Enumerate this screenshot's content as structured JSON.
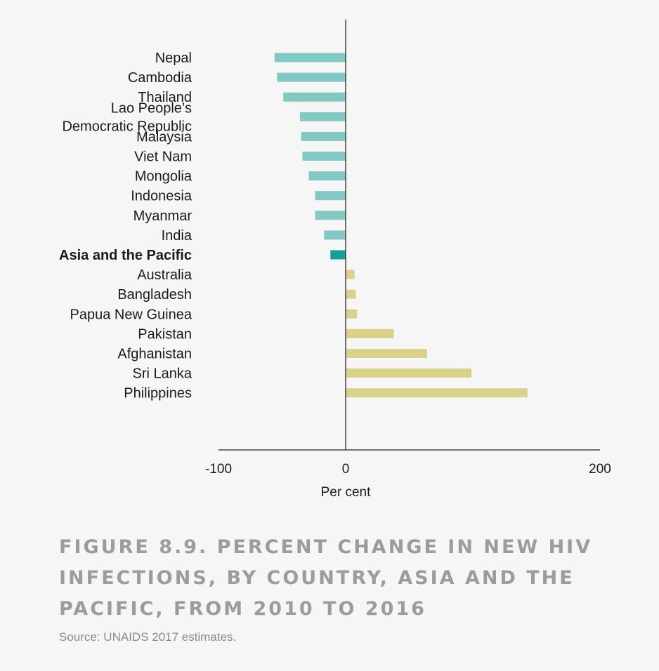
{
  "chart_data": {
    "type": "bar",
    "orientation": "horizontal",
    "categories": [
      "Nepal",
      "Cambodia",
      "Thailand",
      "Lao People’s Democratic Republic",
      "Malaysia",
      "Viet Nam",
      "Mongolia",
      "Indonesia",
      "Myanmar",
      "India",
      "Asia and the Pacific",
      "Australia",
      "Bangladesh",
      "Papua New Guinea",
      "Pakistan",
      "Afghanistan",
      "Sri Lanka",
      "Philippines"
    ],
    "category_lines": [
      [
        "Nepal"
      ],
      [
        "Cambodia"
      ],
      [
        "Thailand"
      ],
      [
        "Lao People’s",
        "Democratic Republic"
      ],
      [
        "Malaysia"
      ],
      [
        "Viet Nam"
      ],
      [
        "Mongolia"
      ],
      [
        "Indonesia"
      ],
      [
        "Myanmar"
      ],
      [
        "India"
      ],
      [
        "Asia and the Pacific"
      ],
      [
        "Australia"
      ],
      [
        "Bangladesh"
      ],
      [
        "Papua New Guinea"
      ],
      [
        "Pakistan"
      ],
      [
        "Afghanistan"
      ],
      [
        "Sri Lanka"
      ],
      [
        "Philippines"
      ]
    ],
    "values": [
      -56,
      -54,
      -49,
      -36,
      -35,
      -34,
      -29,
      -24,
      -24,
      -17,
      -12,
      7,
      8,
      9,
      38,
      64,
      99,
      143
    ],
    "highlight_category": "Asia and the Pacific",
    "xlabel": "Per cent",
    "xlim": [
      -100,
      200
    ],
    "xticks": [
      "-100",
      "0",
      "200"
    ],
    "colors": {
      "decrease": "#82c9c3",
      "region": "#13a096",
      "increase": "#dad18a"
    }
  },
  "caption": "Figure 8.9. Percent change in new HIV infections, by country, Asia and the Pacific, from 2010 to 2016",
  "source": "Source: UNAIDS 2017 estimates."
}
